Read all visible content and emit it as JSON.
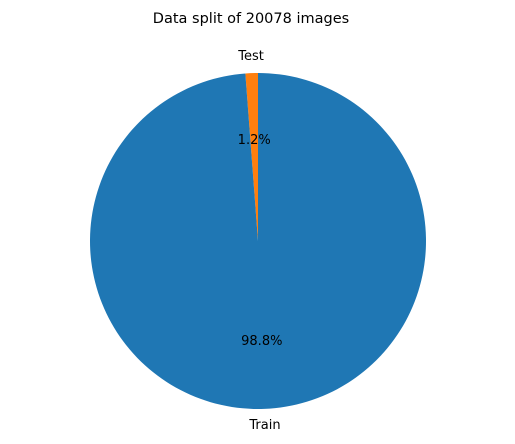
{
  "chart_data": {
    "type": "pie",
    "title": "Data split of 20078 images",
    "labels": [
      "Test",
      "Train"
    ],
    "values": [
      1.2,
      98.8
    ],
    "value_labels": [
      "1.2%",
      "98.8%"
    ],
    "colors": [
      "#ff7f0e",
      "#1f77b4"
    ],
    "start_angle_deg": 90,
    "direction": "counterclockwise",
    "legend": "none"
  }
}
